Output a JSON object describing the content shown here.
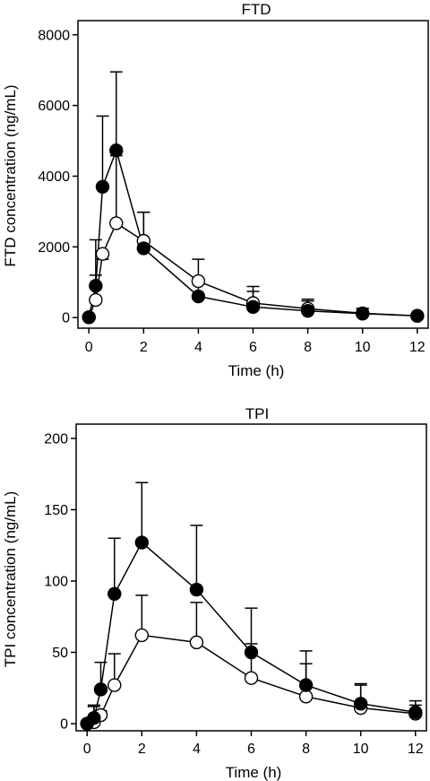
{
  "chart_data": [
    {
      "type": "line",
      "title": "FTD",
      "xlabel": "Time (h)",
      "ylabel": "FTD concentration (ng/mL)",
      "xlim": [
        -0.4,
        12.4
      ],
      "ylim": [
        -300,
        8400
      ],
      "xticks": [
        0,
        2,
        4,
        6,
        8,
        10,
        12
      ],
      "yticks": [
        0,
        2000,
        4000,
        6000,
        8000
      ],
      "grid": false,
      "series": [
        {
          "marker": "filled-circle",
          "x": [
            0,
            0.25,
            0.5,
            1,
            2,
            4,
            6,
            8,
            10,
            12
          ],
          "y": [
            10,
            900,
            3700,
            4730,
            1960,
            600,
            300,
            190,
            110,
            50
          ],
          "error_upper": [
            null,
            1200,
            5700,
            6950,
            2980,
            1020,
            740,
            470,
            260,
            90
          ]
        },
        {
          "marker": "open-circle",
          "x": [
            0,
            0.25,
            0.5,
            1,
            2,
            4,
            6,
            8,
            10,
            12
          ],
          "y": [
            10,
            500,
            1800,
            2670,
            2170,
            1030,
            410,
            250,
            120,
            50
          ],
          "error_upper": [
            null,
            2200,
            1650,
            4580,
            2980,
            1650,
            880,
            520,
            250,
            70
          ]
        }
      ]
    },
    {
      "type": "line",
      "title": "TPI",
      "xlabel": "Time (h)",
      "ylabel": "TPI concentration (ng/mL)",
      "xlim": [
        -0.4,
        12.4
      ],
      "ylim": [
        -5,
        210
      ],
      "xticks": [
        0,
        2,
        4,
        6,
        8,
        10,
        12
      ],
      "yticks": [
        0,
        50,
        100,
        150,
        200
      ],
      "grid": false,
      "series": [
        {
          "marker": "filled-circle",
          "x": [
            0,
            0.25,
            0.5,
            1,
            2,
            4,
            6,
            8,
            10,
            12
          ],
          "y": [
            0,
            4,
            24,
            91,
            127,
            94,
            50,
            27,
            14,
            8
          ],
          "error_upper": [
            null,
            13,
            43,
            130,
            169,
            139,
            81,
            51,
            28,
            16
          ]
        },
        {
          "marker": "open-circle",
          "x": [
            0,
            0.25,
            0.5,
            1,
            2,
            4,
            6,
            8,
            10,
            12
          ],
          "y": [
            0,
            1,
            6,
            27,
            62,
            57,
            32,
            19,
            11,
            7
          ],
          "error_upper": [
            null,
            12,
            9,
            49,
            90,
            85,
            56,
            42,
            27,
            13
          ]
        }
      ]
    }
  ]
}
